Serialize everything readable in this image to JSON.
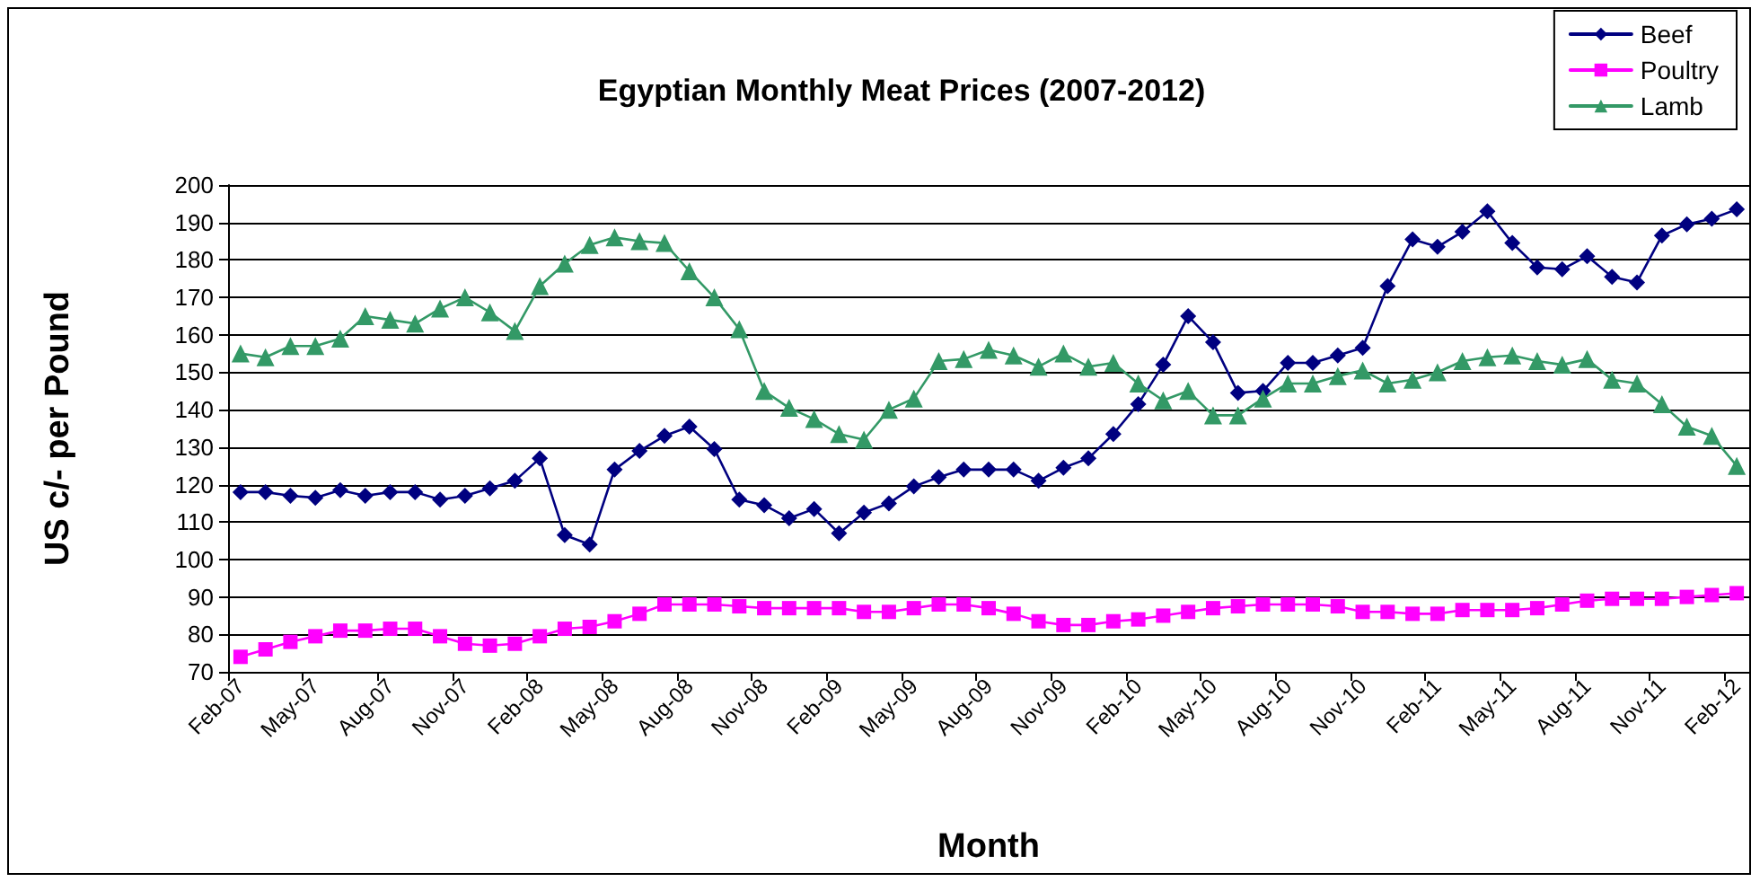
{
  "chart_data": {
    "type": "line",
    "title": "Egyptian Monthly Meat Prices (2007-2012)",
    "xlabel": "Month",
    "ylabel": "US c/- per Pound",
    "categories": [
      "Feb-07",
      null,
      null,
      "May-07",
      null,
      null,
      "Aug-07",
      null,
      null,
      "Nov-07",
      null,
      null,
      "Feb-08",
      null,
      null,
      "May-08",
      null,
      null,
      "Aug-08",
      null,
      null,
      "Nov-08",
      null,
      null,
      "Feb-09",
      null,
      null,
      "May-09",
      null,
      null,
      "Aug-09",
      null,
      null,
      "Nov-09",
      null,
      null,
      "Feb-10",
      null,
      null,
      "May-10",
      null,
      null,
      "Aug-10",
      null,
      null,
      "Nov-10",
      null,
      null,
      "Feb-11",
      null,
      null,
      "May-11",
      null,
      null,
      "Aug-11",
      null,
      null,
      "Nov-11",
      null,
      null,
      "Feb-12"
    ],
    "series": [
      {
        "name": "Beef",
        "color": "#000080",
        "marker": "diamond",
        "values": [
          118,
          118,
          117,
          116.5,
          118.5,
          117,
          118,
          118,
          116,
          117,
          119,
          121,
          127,
          106.5,
          104,
          124,
          129,
          133,
          135.5,
          129.5,
          116,
          114.5,
          111,
          113.5,
          107,
          112.5,
          115,
          119.5,
          122,
          124,
          124,
          124,
          121,
          124.5,
          127,
          133.5,
          141.5,
          152,
          165,
          158,
          144.5,
          145,
          152.5,
          152.5,
          154.5,
          156.5,
          173,
          185.5,
          183.5,
          187.5,
          193,
          184.5,
          178,
          177.5,
          181,
          175.5,
          174,
          186.5,
          189.5,
          191,
          193.5
        ]
      },
      {
        "name": "Poultry",
        "color": "#ff00ff",
        "marker": "square",
        "values": [
          74,
          76,
          78,
          79.5,
          81,
          81,
          81.5,
          81.5,
          79.5,
          77.5,
          77,
          77.5,
          79.5,
          81.5,
          82,
          83.5,
          85.5,
          88,
          88,
          88,
          87.5,
          87,
          87,
          87,
          87,
          86,
          86,
          87,
          88,
          88,
          87,
          85.5,
          83.5,
          82.5,
          82.5,
          83.5,
          84,
          85,
          86,
          87,
          87.5,
          88,
          88,
          88,
          87.5,
          86,
          86,
          85.5,
          85.5,
          86.5,
          86.5,
          86.5,
          87,
          88,
          89,
          89.5,
          89.5,
          89.5,
          90,
          90.5,
          91
        ]
      },
      {
        "name": "Lamb",
        "color": "#339966",
        "marker": "triangle",
        "values": [
          155,
          154,
          157,
          157,
          159,
          165,
          164,
          163,
          167,
          170,
          166,
          161,
          173,
          179,
          184,
          186,
          185,
          184.5,
          177,
          170,
          161.5,
          145,
          140.5,
          137.5,
          133.5,
          132,
          140,
          143,
          153,
          153.5,
          156,
          154.5,
          151.5,
          155,
          151.5,
          152.5,
          147,
          142.5,
          145,
          138.5,
          138.5,
          143,
          147,
          147,
          149,
          150.5,
          147,
          148,
          150,
          153,
          154,
          154.5,
          153,
          152,
          153.5,
          148,
          147,
          141.5,
          135.5,
          133,
          125
        ]
      }
    ],
    "ylim": [
      70,
      200
    ],
    "yticks": [
      70,
      80,
      90,
      100,
      110,
      120,
      130,
      140,
      150,
      160,
      170,
      180,
      190,
      200
    ],
    "grid": "y",
    "legend": "top right"
  }
}
